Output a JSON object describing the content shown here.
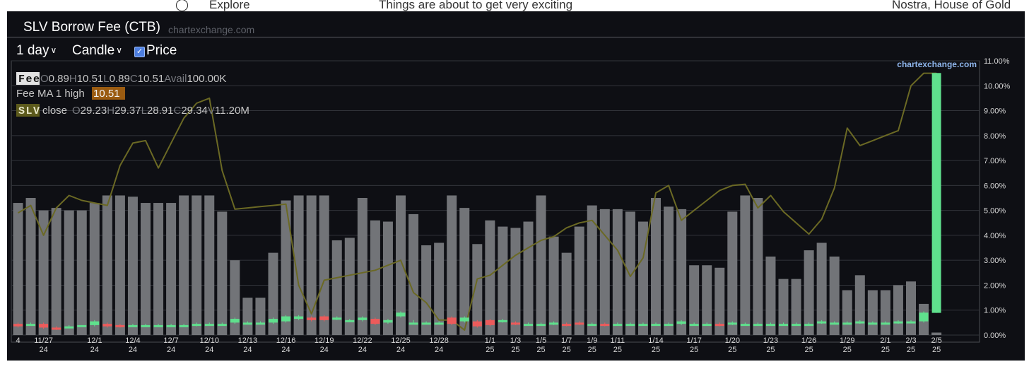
{
  "background_page": {
    "nav_label": "Explore",
    "headline": "Things are about to get very exciting",
    "channel": "Nostra, House of Gold"
  },
  "header": {
    "title": "SLV Borrow Fee (CTB)",
    "site": "chartexchange.com"
  },
  "toolbar": {
    "interval": "1 day",
    "chart_style": "Candle",
    "price_label": "Price",
    "price_checked": true
  },
  "legend": {
    "fee_tag": "Fee",
    "fee_values": [
      {
        "k": "O",
        "v": "0.89"
      },
      {
        "k": "H",
        "v": "10.51"
      },
      {
        "k": "L",
        "v": "0.89"
      },
      {
        "k": "C",
        "v": "10.51"
      },
      {
        "k": "Avail",
        "v": "100.00K"
      }
    ],
    "ma_label": "Fee MA 1 high",
    "ma_value": "10.51",
    "slv_tag": "SLV",
    "slv_label": "close",
    "slv_values": [
      {
        "k": "O",
        "v": "29.23"
      },
      {
        "k": "H",
        "v": "29.37"
      },
      {
        "k": "L",
        "v": "28.91"
      },
      {
        "k": "C",
        "v": "29.34"
      },
      {
        "k": "V",
        "v": "11.20M"
      }
    ]
  },
  "watermark": "chartexchange.com",
  "colors": {
    "up": "#5fe08d",
    "down": "#ec5b5b",
    "avail_bar": "#727478",
    "price_line": "#6b6924",
    "grid": "#32343a",
    "axis_text": "#d8d8d8",
    "fee_tag_bg": "#e2e2e2",
    "ma_bg": "#9a5b11",
    "slv_tag_bg": "#5c5a1c"
  },
  "chart_data": {
    "type": "bar",
    "y_axis": {
      "ticks": [
        "0.00%",
        "1.00%",
        "2.00%",
        "3.00%",
        "4.00%",
        "5.00%",
        "6.00%",
        "7.00%",
        "8.00%",
        "9.00%",
        "10.00%",
        "11.00%"
      ],
      "ylim": [
        0,
        11
      ]
    },
    "x_ticks": [
      {
        "i": 0,
        "l1": "4",
        "l2": ""
      },
      {
        "i": 2,
        "l1": "11/27",
        "l2": "24"
      },
      {
        "i": 6,
        "l1": "12/1",
        "l2": "24"
      },
      {
        "i": 9,
        "l1": "12/4",
        "l2": "24"
      },
      {
        "i": 12,
        "l1": "12/7",
        "l2": "24"
      },
      {
        "i": 15,
        "l1": "12/10",
        "l2": "24"
      },
      {
        "i": 18,
        "l1": "12/13",
        "l2": "24"
      },
      {
        "i": 21,
        "l1": "12/16",
        "l2": "24"
      },
      {
        "i": 24,
        "l1": "12/19",
        "l2": "24"
      },
      {
        "i": 27,
        "l1": "12/22",
        "l2": "24"
      },
      {
        "i": 30,
        "l1": "12/25",
        "l2": "24"
      },
      {
        "i": 33,
        "l1": "12/28",
        "l2": "24"
      },
      {
        "i": 37,
        "l1": "1/1",
        "l2": "25"
      },
      {
        "i": 39,
        "l1": "1/3",
        "l2": "25"
      },
      {
        "i": 41,
        "l1": "1/5",
        "l2": "25"
      },
      {
        "i": 43,
        "l1": "1/7",
        "l2": "25"
      },
      {
        "i": 45,
        "l1": "1/9",
        "l2": "25"
      },
      {
        "i": 47,
        "l1": "1/11",
        "l2": "25"
      },
      {
        "i": 50,
        "l1": "1/14",
        "l2": "25"
      },
      {
        "i": 53,
        "l1": "1/17",
        "l2": "25"
      },
      {
        "i": 56,
        "l1": "1/20",
        "l2": "25"
      },
      {
        "i": 59,
        "l1": "1/23",
        "l2": "25"
      },
      {
        "i": 62,
        "l1": "1/26",
        "l2": "25"
      },
      {
        "i": 65,
        "l1": "1/29",
        "l2": "25"
      },
      {
        "i": 68,
        "l1": "2/1",
        "l2": "25"
      },
      {
        "i": 70,
        "l1": "2/3",
        "l2": "25"
      },
      {
        "i": 72,
        "l1": "2/5",
        "l2": "25"
      }
    ],
    "series": [
      {
        "name": "Avail",
        "type": "bar",
        "values": [
          5.3,
          5.5,
          5.0,
          5.1,
          5.0,
          5.0,
          5.3,
          5.6,
          5.6,
          5.55,
          5.3,
          5.3,
          5.3,
          5.6,
          5.6,
          5.6,
          4.95,
          3.0,
          1.5,
          1.5,
          3.3,
          5.4,
          5.6,
          5.6,
          5.6,
          3.8,
          3.9,
          5.5,
          4.6,
          4.55,
          5.6,
          4.85,
          3.6,
          3.7,
          5.6,
          5.1,
          3.65,
          4.6,
          4.35,
          4.3,
          4.55,
          5.6,
          3.95,
          3.3,
          4.35,
          5.2,
          5.05,
          5.05,
          4.95,
          4.55,
          5.5,
          5.15,
          5.05,
          2.8,
          2.8,
          2.7,
          4.95,
          5.6,
          5.5,
          3.15,
          2.25,
          2.25,
          3.4,
          3.7,
          3.15,
          1.8,
          2.4,
          1.8,
          1.8,
          2.0,
          2.15,
          1.25,
          0.1
        ]
      },
      {
        "name": "Fee",
        "type": "candle",
        "open": [
          0.45,
          0.45,
          0.45,
          0.3,
          0.35,
          0.4,
          0.4,
          0.45,
          0.4,
          0.4,
          0.4,
          0.4,
          0.4,
          0.4,
          0.4,
          0.4,
          0.45,
          0.5,
          0.5,
          0.5,
          0.5,
          0.55,
          0.65,
          0.7,
          0.75,
          0.7,
          0.6,
          0.6,
          0.65,
          0.5,
          0.75,
          0.5,
          0.5,
          0.5,
          0.7,
          0.55,
          0.55,
          0.6,
          0.55,
          0.5,
          0.45,
          0.45,
          0.45,
          0.45,
          0.5,
          0.45,
          0.45,
          0.45,
          0.45,
          0.45,
          0.45,
          0.45,
          0.45,
          0.45,
          0.45,
          0.45,
          0.45,
          0.45,
          0.45,
          0.45,
          0.45,
          0.45,
          0.45,
          0.5,
          0.5,
          0.5,
          0.5,
          0.5,
          0.5,
          0.5,
          0.55,
          0.55,
          0.89
        ],
        "close": [
          0.35,
          0.45,
          0.3,
          0.25,
          0.35,
          0.4,
          0.55,
          0.35,
          0.35,
          0.4,
          0.4,
          0.4,
          0.4,
          0.4,
          0.45,
          0.45,
          0.45,
          0.65,
          0.5,
          0.5,
          0.65,
          0.75,
          0.75,
          0.6,
          0.6,
          0.7,
          0.6,
          0.7,
          0.45,
          0.6,
          0.9,
          0.5,
          0.5,
          0.5,
          0.45,
          0.7,
          0.35,
          0.4,
          0.6,
          0.45,
          0.45,
          0.45,
          0.5,
          0.4,
          0.45,
          0.45,
          0.4,
          0.45,
          0.45,
          0.45,
          0.45,
          0.45,
          0.55,
          0.45,
          0.45,
          0.4,
          0.5,
          0.45,
          0.45,
          0.45,
          0.45,
          0.45,
          0.45,
          0.55,
          0.5,
          0.5,
          0.55,
          0.5,
          0.5,
          0.55,
          0.55,
          0.9,
          10.51
        ],
        "high": [
          0.5,
          0.5,
          0.5,
          0.35,
          0.4,
          0.4,
          0.6,
          0.5,
          0.45,
          0.45,
          0.45,
          0.45,
          0.45,
          0.45,
          0.5,
          0.5,
          0.5,
          0.7,
          0.55,
          0.55,
          0.7,
          0.8,
          0.8,
          0.75,
          0.8,
          0.75,
          0.65,
          0.75,
          0.7,
          0.65,
          0.95,
          0.6,
          0.55,
          0.55,
          0.75,
          0.75,
          0.6,
          0.65,
          0.65,
          0.55,
          0.5,
          0.5,
          0.55,
          0.5,
          0.55,
          0.5,
          0.5,
          0.5,
          0.5,
          0.5,
          0.5,
          0.5,
          0.6,
          0.5,
          0.5,
          0.5,
          0.55,
          0.5,
          0.5,
          0.5,
          0.5,
          0.5,
          0.5,
          0.6,
          0.55,
          0.55,
          0.6,
          0.55,
          0.55,
          0.6,
          0.6,
          0.95,
          10.51
        ],
        "low": [
          0.3,
          0.4,
          0.25,
          0.2,
          0.3,
          0.35,
          0.35,
          0.3,
          0.3,
          0.35,
          0.35,
          0.35,
          0.35,
          0.35,
          0.35,
          0.4,
          0.4,
          0.45,
          0.45,
          0.45,
          0.45,
          0.5,
          0.6,
          0.55,
          0.55,
          0.6,
          0.55,
          0.55,
          0.4,
          0.45,
          0.7,
          0.45,
          0.45,
          0.45,
          0.4,
          0.5,
          0.3,
          0.35,
          0.5,
          0.4,
          0.4,
          0.4,
          0.4,
          0.35,
          0.4,
          0.4,
          0.35,
          0.4,
          0.4,
          0.4,
          0.4,
          0.4,
          0.4,
          0.4,
          0.4,
          0.35,
          0.4,
          0.4,
          0.4,
          0.4,
          0.4,
          0.4,
          0.4,
          0.45,
          0.45,
          0.45,
          0.45,
          0.45,
          0.45,
          0.45,
          0.5,
          0.5,
          0.89
        ]
      },
      {
        "name": "SLV close",
        "type": "line",
        "values": [
          4.9,
          5.2,
          4.0,
          5.1,
          5.6,
          5.4,
          5.3,
          5.2,
          6.8,
          7.7,
          7.8,
          6.7,
          7.7,
          8.7,
          9.3,
          9.5,
          6.6,
          5.05,
          5.1,
          5.15,
          5.2,
          5.25,
          2.0,
          0.85,
          2.2,
          2.3,
          2.4,
          2.5,
          2.6,
          2.8,
          3.0,
          1.7,
          1.3,
          0.6,
          0.6,
          0.2,
          2.25,
          2.4,
          2.8,
          3.2,
          3.5,
          3.8,
          3.95,
          4.3,
          4.5,
          4.6,
          4.0,
          3.4,
          2.35,
          3.1,
          5.7,
          6.0,
          4.6,
          5.0,
          5.4,
          5.8,
          6.0,
          6.05,
          5.1,
          5.6,
          4.95,
          4.5,
          4.05,
          4.65,
          5.9,
          8.3,
          7.6,
          7.8,
          8.0,
          8.2,
          10.0,
          10.5,
          10.5
        ]
      }
    ],
    "grid": true,
    "legend_position": "top-left"
  }
}
